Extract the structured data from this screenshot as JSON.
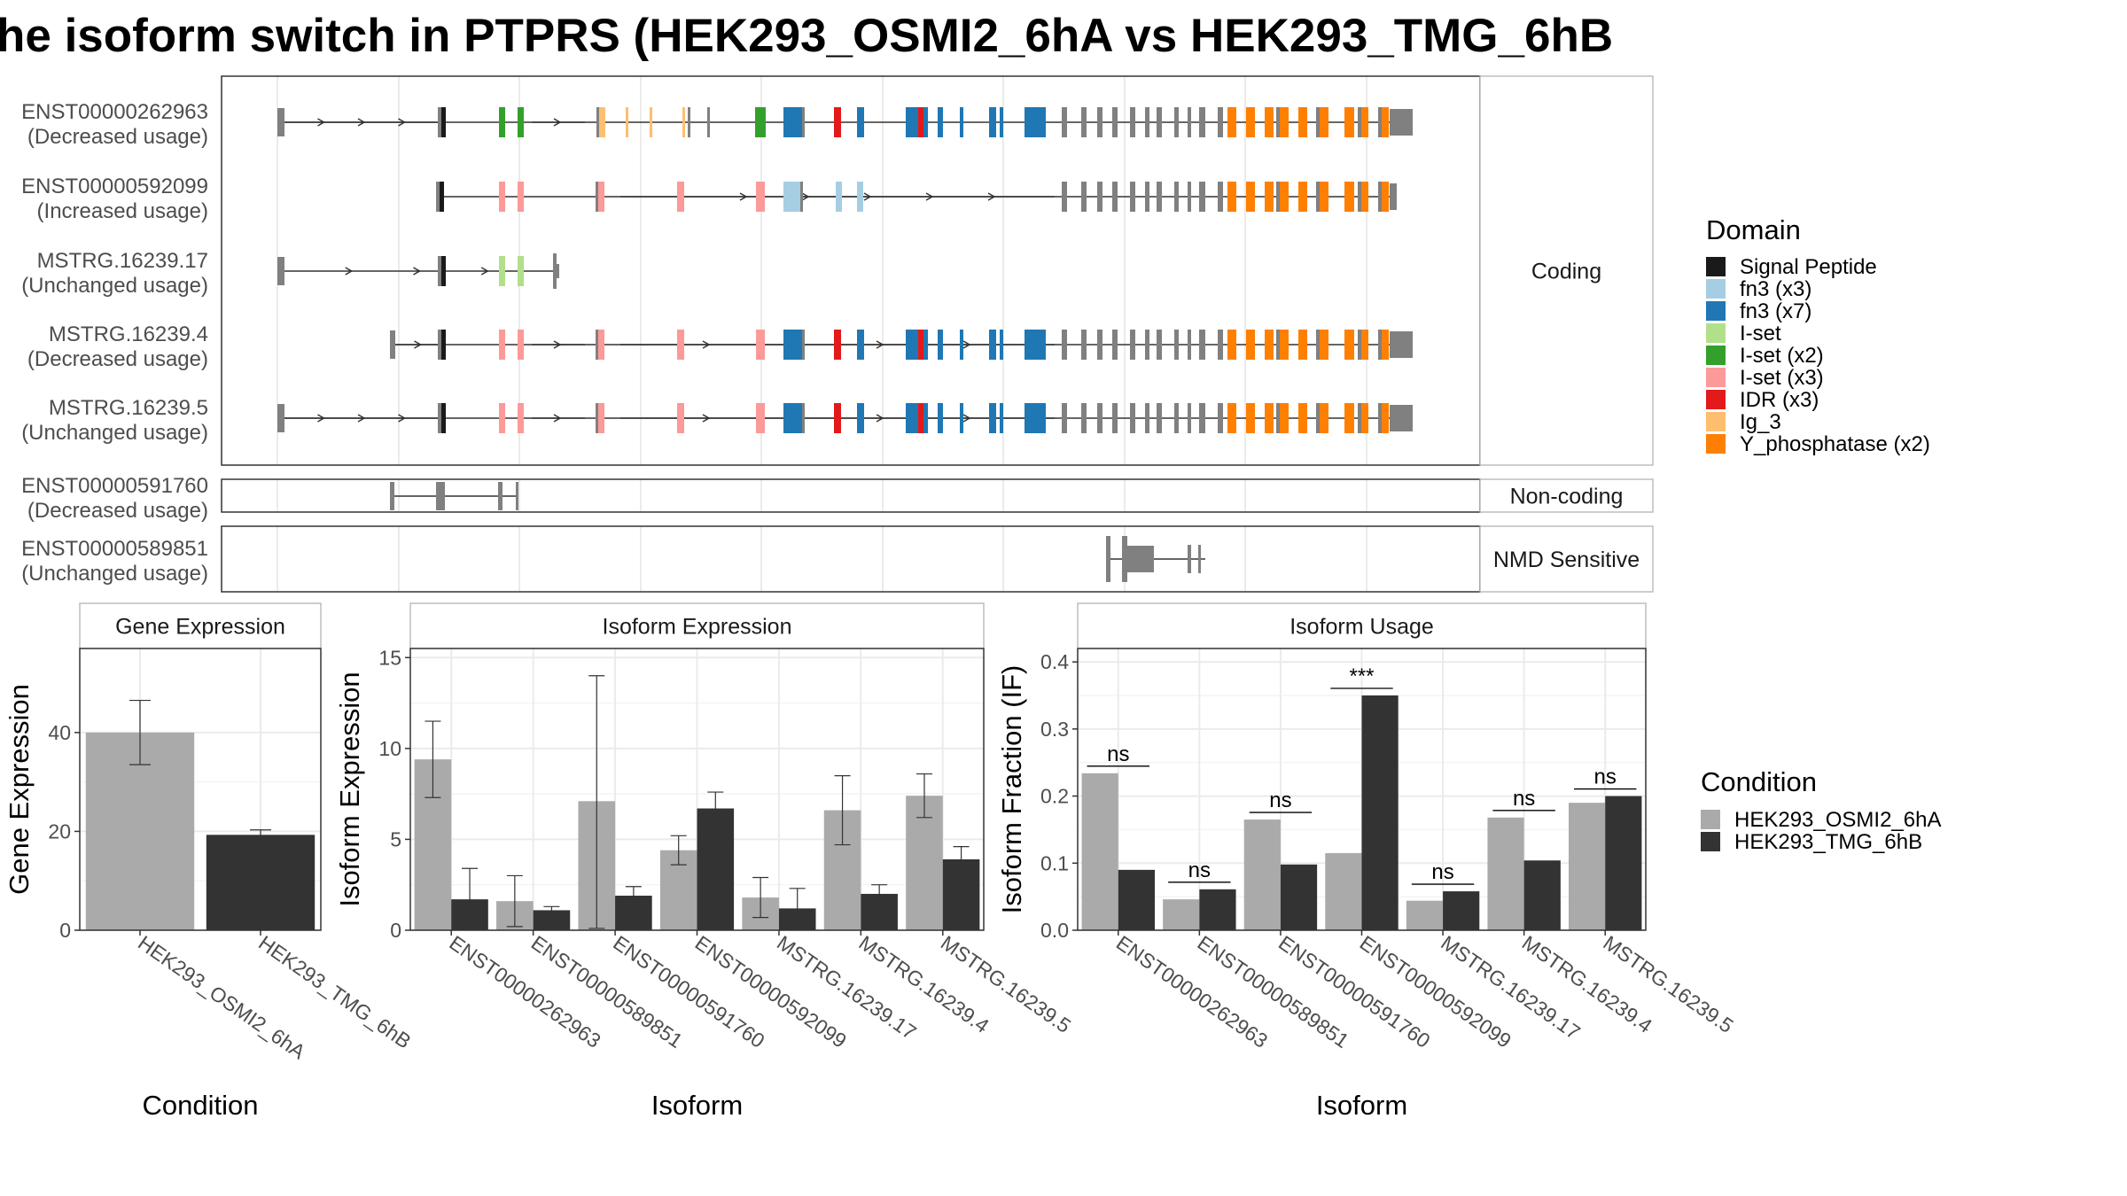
{
  "title": "he isoform switch in PTPRS (HEK293_OSMI2_6hA vs HEK293_TMG_6hB",
  "transcripts": [
    {
      "id": "ENST00000262963",
      "usage": "(Decreased usage)",
      "group": "coding"
    },
    {
      "id": "ENST00000592099",
      "usage": "(Increased usage)",
      "group": "coding"
    },
    {
      "id": "MSTRG.16239.17",
      "usage": "(Unchanged usage)",
      "group": "coding"
    },
    {
      "id": "MSTRG.16239.4",
      "usage": "(Decreased usage)",
      "group": "coding"
    },
    {
      "id": "MSTRG.16239.5",
      "usage": "(Unchanged usage)",
      "group": "coding"
    },
    {
      "id": "ENST00000591760",
      "usage": "(Decreased usage)",
      "group": "noncoding"
    },
    {
      "id": "ENST00000589851",
      "usage": "(Unchanged usage)",
      "group": "nmd"
    }
  ],
  "panel_groups": {
    "coding": "Coding",
    "noncoding": "Non-coding",
    "nmd": "NMD Sensitive"
  },
  "domain_legend": {
    "title": "Domain",
    "items": [
      {
        "label": "Signal Peptide",
        "color": "#1a1a1a"
      },
      {
        "label": "fn3 (x3)",
        "color": "#a6cee3"
      },
      {
        "label": "fn3 (x7)",
        "color": "#1f78b4"
      },
      {
        "label": "I-set",
        "color": "#b2df8a"
      },
      {
        "label": "I-set (x2)",
        "color": "#33a02c"
      },
      {
        "label": "I-set (x3)",
        "color": "#fb9a99"
      },
      {
        "label": "IDR (x3)",
        "color": "#e31a1c"
      },
      {
        "label": "Ig_3",
        "color": "#fdbf6f"
      },
      {
        "label": "Y_phosphatase (x2)",
        "color": "#ff7f00"
      }
    ]
  },
  "condition_legend": {
    "title": "Condition",
    "items": [
      {
        "label": "HEK293_OSMI2_6hA",
        "color": "#aaaaaa"
      },
      {
        "label": "HEK293_TMG_6hB",
        "color": "#333333"
      }
    ]
  },
  "chart_data": [
    {
      "type": "bar",
      "title": "Gene Expression",
      "xlabel": "Condition",
      "ylabel": "Gene Expression",
      "ylim": [
        0,
        57
      ],
      "yticks": [
        0,
        20,
        40
      ],
      "categories": [
        "HEK293_OSMI2_6hA",
        "HEK293_TMG_6hB"
      ],
      "values": [
        40,
        19.3
      ],
      "error_low": [
        33.5,
        18.3
      ],
      "error_high": [
        46.5,
        20.3
      ],
      "colors": [
        "#aaaaaa",
        "#333333"
      ]
    },
    {
      "type": "bar",
      "title": "Isoform Expression",
      "xlabel": "Isoform",
      "ylabel": "Isoform Expression",
      "ylim": [
        0,
        15.5
      ],
      "yticks": [
        0,
        5,
        10,
        15
      ],
      "categories": [
        "ENST00000262963",
        "ENST00000589851",
        "ENST00000591760",
        "ENST00000592099",
        "MSTRG.16239.17",
        "MSTRG.16239.4",
        "MSTRG.16239.5"
      ],
      "series": [
        {
          "name": "HEK293_OSMI2_6hA",
          "values": [
            9.4,
            1.6,
            7.1,
            4.4,
            1.8,
            6.6,
            7.4
          ],
          "error_low": [
            7.3,
            0.2,
            0.1,
            3.6,
            0.7,
            4.7,
            6.2
          ],
          "error_high": [
            11.5,
            3.0,
            14.0,
            5.2,
            2.9,
            8.5,
            8.6
          ]
        },
        {
          "name": "HEK293_TMG_6hB",
          "values": [
            1.7,
            1.1,
            1.9,
            6.7,
            1.2,
            2.0,
            3.9
          ],
          "error_low": [
            0.1,
            0.9,
            1.4,
            5.8,
            0.1,
            1.5,
            3.2
          ],
          "error_high": [
            3.4,
            1.3,
            2.4,
            7.6,
            2.3,
            2.5,
            4.6
          ]
        }
      ]
    },
    {
      "type": "bar",
      "title": "Isoform Usage",
      "xlabel": "Isoform",
      "ylabel": "Isoform Fraction (IF)",
      "ylim": [
        0,
        0.42
      ],
      "yticks": [
        "0.0",
        "0.1",
        "0.2",
        "0.3",
        "0.4"
      ],
      "categories": [
        "ENST00000262963",
        "ENST00000589851",
        "ENST00000591760",
        "ENST00000592099",
        "MSTRG.16239.17",
        "MSTRG.16239.4",
        "MSTRG.16239.5"
      ],
      "series": [
        {
          "name": "HEK293_OSMI2_6hA",
          "values": [
            0.234,
            0.046,
            0.165,
            0.115,
            0.044,
            0.168,
            0.19
          ]
        },
        {
          "name": "HEK293_TMG_6hB",
          "values": [
            0.09,
            0.061,
            0.098,
            0.35,
            0.058,
            0.104,
            0.2
          ]
        }
      ],
      "significance": [
        "ns",
        "ns",
        "ns",
        "***",
        "ns",
        "ns",
        "ns"
      ]
    }
  ]
}
